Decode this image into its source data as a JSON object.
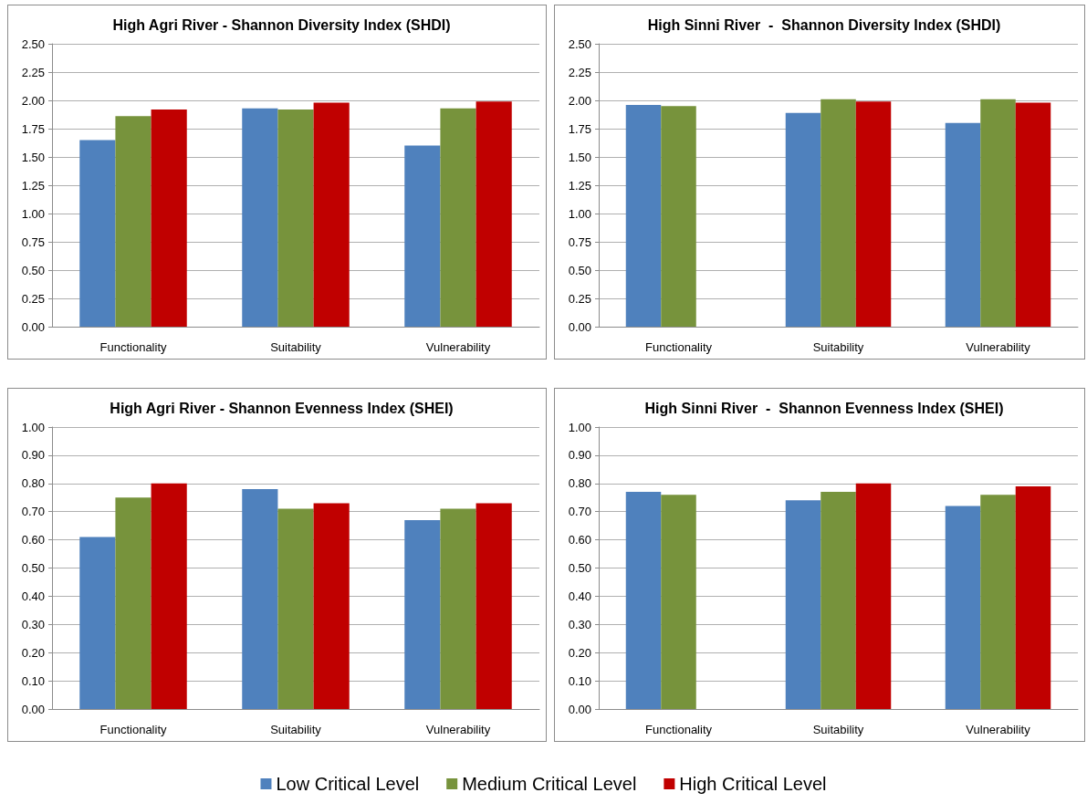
{
  "chart_data": [
    {
      "type": "bar",
      "title": "High Agri River - Shannon Diversity Index (SHDI)",
      "categories": [
        "Functionality",
        "Suitability",
        "Vulnerability"
      ],
      "series": [
        {
          "color": "#4f81bd",
          "values": [
            1.65,
            1.93,
            1.6
          ]
        },
        {
          "color": "#77933c",
          "values": [
            1.86,
            1.92,
            1.93
          ]
        },
        {
          "color": "#c00000",
          "values": [
            1.92,
            1.98,
            1.99
          ]
        }
      ],
      "ylim": [
        0,
        2.5
      ],
      "yticks": [
        {
          "value": 0,
          "label": "0.00"
        },
        {
          "value": 0.25,
          "label": "0.25"
        },
        {
          "value": 0.5,
          "label": "0.50"
        },
        {
          "value": 0.75,
          "label": "0.75"
        },
        {
          "value": 1,
          "label": "1.00"
        },
        {
          "value": 1.25,
          "label": "1.25"
        },
        {
          "value": 1.5,
          "label": "1.50"
        },
        {
          "value": 1.75,
          "label": "1.75"
        },
        {
          "value": 2,
          "label": "2.00"
        },
        {
          "value": 2.25,
          "label": "2.25"
        },
        {
          "value": 2.5,
          "label": "2.50"
        }
      ],
      "grid": "y",
      "legend": false
    },
    {
      "type": "bar",
      "title": "High Sinni River  -  Shannon Diversity Index (SHDI)",
      "categories": [
        "Functionality",
        "Suitability",
        "Vulnerability"
      ],
      "series": [
        {
          "color": "#4f81bd",
          "values": [
            1.96,
            1.89,
            1.8
          ]
        },
        {
          "color": "#77933c",
          "values": [
            1.95,
            2.01,
            2.01
          ]
        },
        {
          "color": "#c00000",
          "values": [
            null,
            1.99,
            1.98
          ]
        }
      ],
      "ylim": [
        0,
        2.5
      ],
      "yticks": [
        {
          "value": 0,
          "label": "0.00"
        },
        {
          "value": 0.25,
          "label": "0.25"
        },
        {
          "value": 0.5,
          "label": "0.50"
        },
        {
          "value": 0.75,
          "label": "0.75"
        },
        {
          "value": 1,
          "label": "1.00"
        },
        {
          "value": 1.25,
          "label": "1.25"
        },
        {
          "value": 1.5,
          "label": "1.50"
        },
        {
          "value": 1.75,
          "label": "1.75"
        },
        {
          "value": 2,
          "label": "2.00"
        },
        {
          "value": 2.25,
          "label": "2.25"
        },
        {
          "value": 2.5,
          "label": "2.50"
        }
      ],
      "grid": "y",
      "legend": false
    },
    {
      "type": "bar",
      "title": "High Agri River - Shannon Evenness Index (SHEI)",
      "categories": [
        "Functionality",
        "Suitability",
        "Vulnerability"
      ],
      "series": [
        {
          "name": "Low Critical Level",
          "color": "#4f81bd",
          "values": [
            0.61,
            0.78,
            0.67
          ]
        },
        {
          "name": "Medium Critical Level",
          "color": "#77933c",
          "values": [
            0.75,
            0.71,
            0.71
          ]
        },
        {
          "name": "High Critical Level",
          "color": "#c00000",
          "values": [
            0.8,
            0.73,
            0.73
          ]
        }
      ],
      "ylim": [
        0,
        1
      ],
      "yticks": [
        {
          "value": 0,
          "label": "0.00"
        },
        {
          "value": 0.1,
          "label": "0.10"
        },
        {
          "value": 0.2,
          "label": "0.20"
        },
        {
          "value": 0.3,
          "label": "0.30"
        },
        {
          "value": 0.4,
          "label": "0.40"
        },
        {
          "value": 0.5,
          "label": "0.50"
        },
        {
          "value": 0.6,
          "label": "0.60"
        },
        {
          "value": 0.7,
          "label": "0.70"
        },
        {
          "value": 0.8,
          "label": "0.80"
        },
        {
          "value": 0.9,
          "label": "0.90"
        },
        {
          "value": 1,
          "label": "1.00"
        }
      ],
      "grid": "y",
      "legend": "bottom"
    },
    {
      "type": "bar",
      "title": "High Sinni River  -  Shannon Evenness Index (SHEI)",
      "categories": [
        "Functionality",
        "Suitability",
        "Vulnerability"
      ],
      "series": [
        {
          "color": "#4f81bd",
          "values": [
            0.77,
            0.74,
            0.72
          ]
        },
        {
          "color": "#77933c",
          "values": [
            0.76,
            0.77,
            0.76
          ]
        },
        {
          "color": "#c00000",
          "values": [
            null,
            0.8,
            0.79
          ]
        }
      ],
      "ylim": [
        0,
        1
      ],
      "yticks": [
        {
          "value": 0,
          "label": "0.00"
        },
        {
          "value": 0.1,
          "label": "0.10"
        },
        {
          "value": 0.2,
          "label": "0.20"
        },
        {
          "value": 0.3,
          "label": "0.30"
        },
        {
          "value": 0.4,
          "label": "0.40"
        },
        {
          "value": 0.5,
          "label": "0.50"
        },
        {
          "value": 0.6,
          "label": "0.60"
        },
        {
          "value": 0.7,
          "label": "0.70"
        },
        {
          "value": 0.8,
          "label": "0.80"
        },
        {
          "value": 0.9,
          "label": "0.90"
        },
        {
          "value": 1,
          "label": "1.00"
        }
      ],
      "grid": "y",
      "legend": false
    }
  ]
}
